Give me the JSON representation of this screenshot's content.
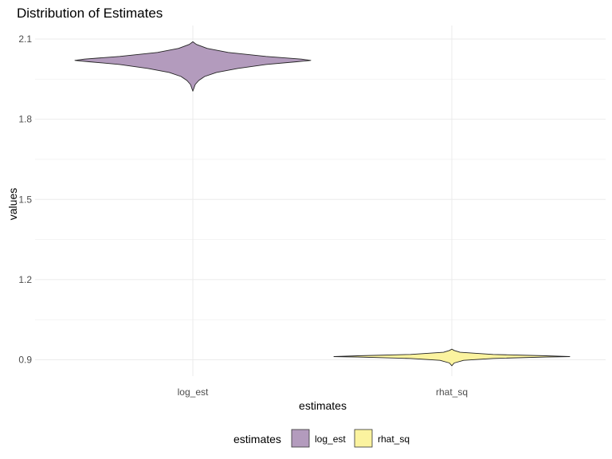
{
  "chart_data": {
    "type": "violin",
    "title": "Distribution of Estimates",
    "xlabel": "estimates",
    "ylabel": "values",
    "categories": [
      "log_est",
      "rhat_sq"
    ],
    "ylim": [
      0.86,
      2.14
    ],
    "yticks": [
      0.9,
      1.2,
      1.5,
      1.8,
      2.1
    ],
    "ytick_labels": [
      "0.9",
      "1.2",
      "1.5",
      "1.8",
      "2.1"
    ],
    "grid": true,
    "legend": {
      "title": "estimates",
      "placement": "bottom",
      "entries": [
        {
          "label": "log_est",
          "color": "#b39bbd"
        },
        {
          "label": "rhat_sq",
          "color": "#fbf39f"
        }
      ]
    },
    "violins": [
      {
        "category": "log_est",
        "color": "#b39bbd",
        "profile": [
          [
            1.905,
            0.0
          ],
          [
            1.93,
            0.02
          ],
          [
            1.945,
            0.05
          ],
          [
            1.96,
            0.1
          ],
          [
            1.975,
            0.2
          ],
          [
            1.99,
            0.38
          ],
          [
            2.005,
            0.62
          ],
          [
            2.015,
            0.88
          ],
          [
            2.02,
            1.0
          ],
          [
            2.025,
            0.92
          ],
          [
            2.035,
            0.62
          ],
          [
            2.05,
            0.3
          ],
          [
            2.065,
            0.12
          ],
          [
            2.08,
            0.03
          ],
          [
            2.09,
            0.0
          ]
        ]
      },
      {
        "category": "rhat_sq",
        "color": "#fbf39f",
        "profile": [
          [
            0.878,
            0.0
          ],
          [
            0.888,
            0.02
          ],
          [
            0.898,
            0.1
          ],
          [
            0.905,
            0.35
          ],
          [
            0.91,
            0.8
          ],
          [
            0.912,
            1.0
          ],
          [
            0.915,
            0.8
          ],
          [
            0.92,
            0.35
          ],
          [
            0.928,
            0.07
          ],
          [
            0.935,
            0.02
          ],
          [
            0.94,
            0.0
          ]
        ]
      }
    ]
  }
}
